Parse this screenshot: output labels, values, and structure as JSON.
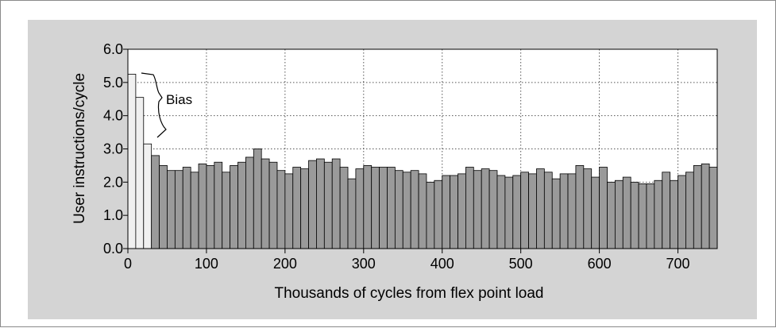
{
  "chart_data": {
    "type": "bar",
    "title": "",
    "xlabel": "Thousands of cycles from flex point load",
    "ylabel": "User instructions/cycle",
    "xlim": [
      0,
      750
    ],
    "ylim": [
      0,
      6.0
    ],
    "xticks": [
      0,
      100,
      200,
      300,
      400,
      500,
      600,
      700
    ],
    "yticks": [
      0.0,
      1.0,
      2.0,
      3.0,
      4.0,
      5.0,
      6.0
    ],
    "ytick_labels": [
      "0.0",
      "1.0",
      "2.0",
      "3.0",
      "4.0",
      "5.0",
      "6.0"
    ],
    "grid": true,
    "bin_width": 10,
    "bias_bins": 3,
    "bias_color": "#f0f0f0",
    "bar_color": "#9a9a9a",
    "annotation": "Bias",
    "values": [
      5.25,
      4.55,
      3.15,
      2.8,
      2.5,
      2.35,
      2.35,
      2.45,
      2.3,
      2.55,
      2.5,
      2.6,
      2.3,
      2.5,
      2.6,
      2.75,
      3.0,
      2.7,
      2.6,
      2.35,
      2.25,
      2.45,
      2.4,
      2.65,
      2.7,
      2.6,
      2.7,
      2.45,
      2.1,
      2.4,
      2.5,
      2.45,
      2.45,
      2.45,
      2.35,
      2.3,
      2.35,
      2.25,
      2.0,
      2.05,
      2.2,
      2.2,
      2.25,
      2.45,
      2.35,
      2.4,
      2.35,
      2.2,
      2.15,
      2.2,
      2.3,
      2.25,
      2.4,
      2.3,
      2.1,
      2.25,
      2.25,
      2.5,
      2.4,
      2.15,
      2.45,
      2.0,
      2.05,
      2.15,
      2.0,
      1.95,
      1.95,
      2.05,
      2.3,
      2.05,
      2.2,
      2.3,
      2.5,
      2.55,
      2.45
    ]
  }
}
